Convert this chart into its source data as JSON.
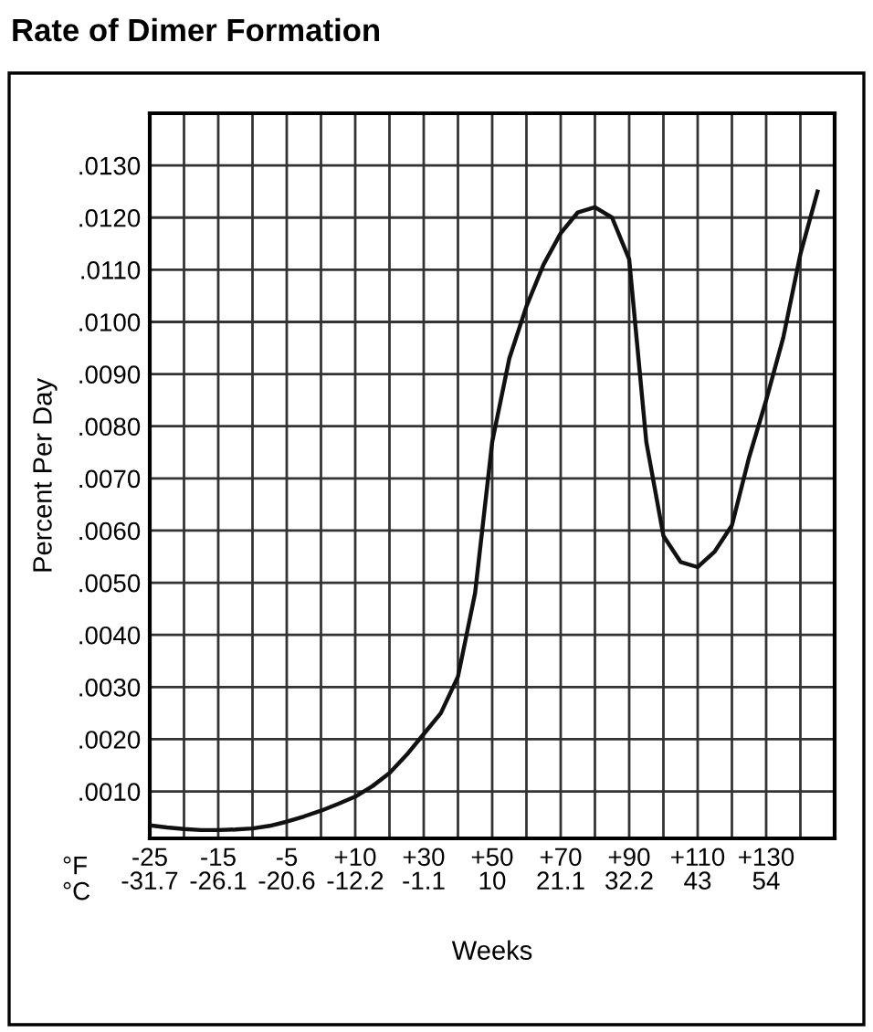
{
  "chart_data": {
    "type": "line",
    "title": "Rate of Dimer Formation",
    "xlabel": "Weeks",
    "ylabel": "Percent Per Day",
    "annotations": [
      "°F",
      "°C"
    ],
    "categories": [
      "-25\n-31.7",
      null,
      null,
      null,
      "-15\n-26.1",
      null,
      null,
      null,
      "-5\n-20.6",
      null,
      null,
      null,
      "+10\n-12.2",
      null,
      null,
      null,
      "+30\n-1.1",
      null,
      null,
      null,
      "+50\n10",
      null,
      null,
      null,
      "+70\n21.1",
      null,
      null,
      null,
      "+90\n32.2",
      null,
      null,
      null,
      "+110\n43",
      null,
      null,
      null,
      "+130\n54",
      null,
      null,
      null,
      null
    ],
    "series": [
      {
        "color": "#111111",
        "values": [
          0.00035,
          0.00031,
          0.00028,
          0.00026,
          0.00026,
          0.00027,
          0.00029,
          0.00034,
          0.00042,
          0.00052,
          0.00063,
          0.00076,
          0.0009,
          0.0011,
          0.00135,
          0.0017,
          0.0021,
          0.0025,
          0.0032,
          0.0048,
          0.0077,
          0.0093,
          0.0103,
          0.0111,
          0.0117,
          0.0121,
          0.0122,
          0.012,
          0.0112,
          0.0077,
          0.0059,
          0.0054,
          0.0053,
          0.0056,
          0.0061,
          0.0074,
          0.0085,
          0.0097,
          0.0113,
          0.0125,
          null
        ]
      }
    ],
    "ylim": [
      0.0001,
      0.014
    ],
    "yticks": [
      {
        "value": 0.001,
        "label": ".0010"
      },
      {
        "value": 0.002,
        "label": ".0020"
      },
      {
        "value": 0.003,
        "label": ".0030"
      },
      {
        "value": 0.004,
        "label": ".0040"
      },
      {
        "value": 0.005,
        "label": ".0050"
      },
      {
        "value": 0.006,
        "label": ".0060"
      },
      {
        "value": 0.007,
        "label": ".0070"
      },
      {
        "value": 0.008,
        "label": ".0080"
      },
      {
        "value": 0.009,
        "label": ".0090"
      },
      {
        "value": 0.01,
        "label": ".0100"
      },
      {
        "value": 0.011,
        "label": ".0110"
      },
      {
        "value": 0.012,
        "label": ".0120"
      },
      {
        "value": 0.013,
        "label": ".0130"
      }
    ],
    "grid": true,
    "line_style": "solid",
    "marker": "none"
  }
}
